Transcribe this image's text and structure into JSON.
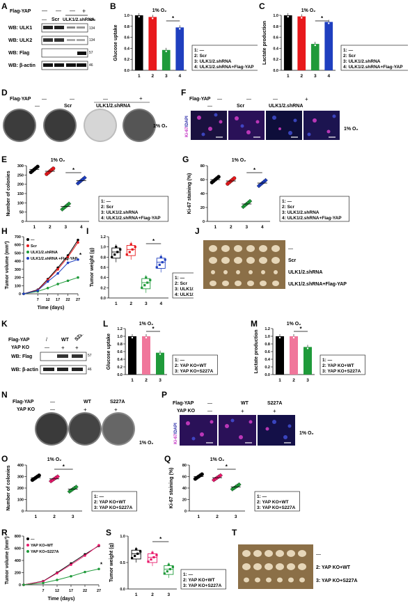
{
  "labels": {
    "flag_yap": "Flag-YAP",
    "yap_ko": "YAP KO",
    "dash": "—",
    "plus": "+",
    "scr": "Scr",
    "shrna": "ULK1/2.shRNA",
    "shrna_yap": "ULK1/2.shRNA+Flag-YAP",
    "wt": "WT",
    "s227a": "S227A",
    "slash": "/",
    "o2": "1% O₂",
    "kda": "kDa",
    "star": "*",
    "ki67_dapi_a": "Ki-67",
    "ki67_dapi_b": "/DAPI"
  },
  "panels": {
    "A": "A",
    "B": "B",
    "C": "C",
    "D": "D",
    "E": "E",
    "F": "F",
    "G": "G",
    "H": "H",
    "I": "I",
    "J": "J",
    "K": "K",
    "L": "L",
    "M": "M",
    "N": "N",
    "O": "O",
    "P": "P",
    "Q": "Q",
    "R": "R",
    "S": "S",
    "T": "T"
  },
  "western_A": {
    "rows": [
      "WB: ULK1",
      "WB: ULK2",
      "WB: Flag",
      "WB: β-actin"
    ],
    "kda": [
      "134",
      "134",
      "57",
      "46"
    ]
  },
  "western_K": {
    "rows": [
      "WB: Flag",
      "WB: β-actin"
    ],
    "kda": [
      "57",
      "46"
    ]
  },
  "legend4": [
    "1: —",
    "2: Scr",
    "3: ULK1/2.shRNA",
    "4: ULK1/2.shRNA+Flag-YAP"
  ],
  "legend3": [
    "1: —",
    "2: YAP KO+WT",
    "3: YAP KO+S227A"
  ],
  "chart_data": [
    {
      "id": "B",
      "type": "bar",
      "ylabel": "Glucose uptake",
      "categories": [
        "1",
        "2",
        "3",
        "4"
      ],
      "values": [
        1.0,
        0.97,
        0.37,
        0.78
      ],
      "ylim": [
        0,
        1.0
      ],
      "yticks": [
        "0.0",
        "0.2",
        "0.4",
        "0.6",
        "0.8",
        "1.0"
      ],
      "colors": [
        "#000000",
        "#e8191c",
        "#1f9a3a",
        "#1f3fbf"
      ]
    },
    {
      "id": "C",
      "type": "bar",
      "ylabel": "Lactate production",
      "categories": [
        "1",
        "2",
        "3",
        "4"
      ],
      "values": [
        1.0,
        0.98,
        0.48,
        0.88
      ],
      "ylim": [
        0,
        1.0
      ],
      "yticks": [
        "0.0",
        "0.2",
        "0.4",
        "0.6",
        "0.8",
        "1.0"
      ],
      "colors": [
        "#000000",
        "#e8191c",
        "#1f9a3a",
        "#1f3fbf"
      ]
    },
    {
      "id": "E",
      "type": "scatter",
      "ylabel": "Number of colonies",
      "categories": [
        "1",
        "2",
        "3",
        "4"
      ],
      "means": [
        280,
        270,
        80,
        220
      ],
      "ylim": [
        0,
        300
      ],
      "yticks": [
        "0",
        "50",
        "100",
        "150",
        "200",
        "250",
        "300"
      ]
    },
    {
      "id": "G",
      "type": "scatter",
      "ylabel": "Ki-67 staining (%)",
      "categories": [
        "1",
        "2",
        "3",
        "4"
      ],
      "means": [
        60,
        58,
        25,
        55
      ],
      "ylim": [
        0,
        80
      ],
      "yticks": [
        "0",
        "20",
        "40",
        "60",
        "80"
      ]
    },
    {
      "id": "H",
      "type": "line",
      "ylabel": "Tumor volume (mm³)",
      "xlabel": "Time (days)",
      "x": [
        0,
        7,
        12,
        17,
        22,
        27
      ],
      "xticks": [
        "7",
        "12",
        "17",
        "22",
        "27"
      ],
      "ylim": [
        0,
        700
      ],
      "yticks": [
        "0",
        "100",
        "200",
        "300",
        "400",
        "500",
        "600",
        "700"
      ],
      "series": [
        {
          "name": "—",
          "color": "#000000",
          "values": [
            0,
            50,
            180,
            320,
            470,
            660
          ]
        },
        {
          "name": "Scr",
          "color": "#e8191c",
          "values": [
            0,
            45,
            170,
            300,
            450,
            630
          ]
        },
        {
          "name": "ULK1/2.shRNA",
          "color": "#1f9a3a",
          "values": [
            0,
            30,
            70,
            120,
            160,
            200
          ]
        },
        {
          "name": "ULK1/2.shRNA +Flag-YAP",
          "color": "#1f3fbf",
          "values": [
            0,
            40,
            150,
            250,
            380,
            420
          ]
        }
      ]
    },
    {
      "id": "I",
      "type": "box",
      "ylabel": "Tumor weight (g)",
      "categories": [
        "1",
        "2",
        "3",
        "4"
      ],
      "medians": [
        0.9,
        0.95,
        0.3,
        0.7
      ],
      "ylim": [
        0,
        1.2
      ],
      "yticks": [
        "0.0",
        "0.2",
        "0.4",
        "0.6",
        "0.8",
        "1.0",
        "1.2"
      ]
    },
    {
      "id": "L",
      "type": "bar",
      "ylabel": "Glucose uptake",
      "categories": [
        "1",
        "2",
        "3"
      ],
      "values": [
        1.0,
        1.0,
        0.57
      ],
      "ylim": [
        0,
        1.2
      ],
      "yticks": [
        "0.0",
        "0.2",
        "0.4",
        "0.6",
        "0.8",
        "1.0",
        "1.2"
      ],
      "colors": [
        "#000000",
        "#f0779b",
        "#1f9a3a"
      ]
    },
    {
      "id": "M",
      "type": "bar",
      "ylabel": "Lactate production",
      "categories": [
        "1",
        "2",
        "3"
      ],
      "values": [
        1.0,
        1.0,
        0.72
      ],
      "ylim": [
        0,
        1.2
      ],
      "yticks": [
        "0.0",
        "0.2",
        "0.4",
        "0.6",
        "0.8",
        "1.0",
        "1.2"
      ],
      "colors": [
        "#000000",
        "#f0779b",
        "#1f9a3a"
      ]
    },
    {
      "id": "O",
      "type": "scatter",
      "ylabel": "Number of colonies",
      "categories": [
        "1",
        "2",
        "3"
      ],
      "means": [
        290,
        280,
        190
      ],
      "ylim": [
        0,
        400
      ],
      "yticks": [
        "0",
        "100",
        "200",
        "300",
        "400"
      ]
    },
    {
      "id": "Q",
      "type": "scatter",
      "ylabel": "Ki-67 staining (%)",
      "categories": [
        "1",
        "2",
        "3"
      ],
      "means": [
        60,
        58,
        42
      ],
      "ylim": [
        0,
        80
      ],
      "yticks": [
        "0",
        "20",
        "40",
        "60",
        "80"
      ]
    },
    {
      "id": "R",
      "type": "line",
      "ylabel": "Tumor volume (mm³)",
      "xlabel": "Time (days)",
      "x": [
        0,
        7,
        12,
        17,
        22,
        27
      ],
      "xticks": [
        "7",
        "12",
        "17",
        "22",
        "27"
      ],
      "ylim": [
        0,
        800
      ],
      "yticks": [
        "0",
        "200",
        "400",
        "600",
        "800"
      ],
      "series": [
        {
          "name": "—",
          "color": "#000000",
          "values": [
            0,
            60,
            200,
            350,
            500,
            640
          ]
        },
        {
          "name": "YAP KO+WT",
          "color": "#e8196b",
          "values": [
            0,
            55,
            190,
            330,
            480,
            650
          ]
        },
        {
          "name": "YAP KO+S227A",
          "color": "#1f9a3a",
          "values": [
            0,
            30,
            80,
            140,
            210,
            260
          ]
        }
      ]
    },
    {
      "id": "S",
      "type": "box",
      "ylabel": "Tumor weight (g)",
      "categories": [
        "1",
        "2",
        "3"
      ],
      "medians": [
        0.8,
        0.72,
        0.45
      ],
      "ylim": [
        0,
        1.2
      ],
      "yticks": [
        "0.0",
        "0.5",
        "1.0"
      ]
    }
  ]
}
